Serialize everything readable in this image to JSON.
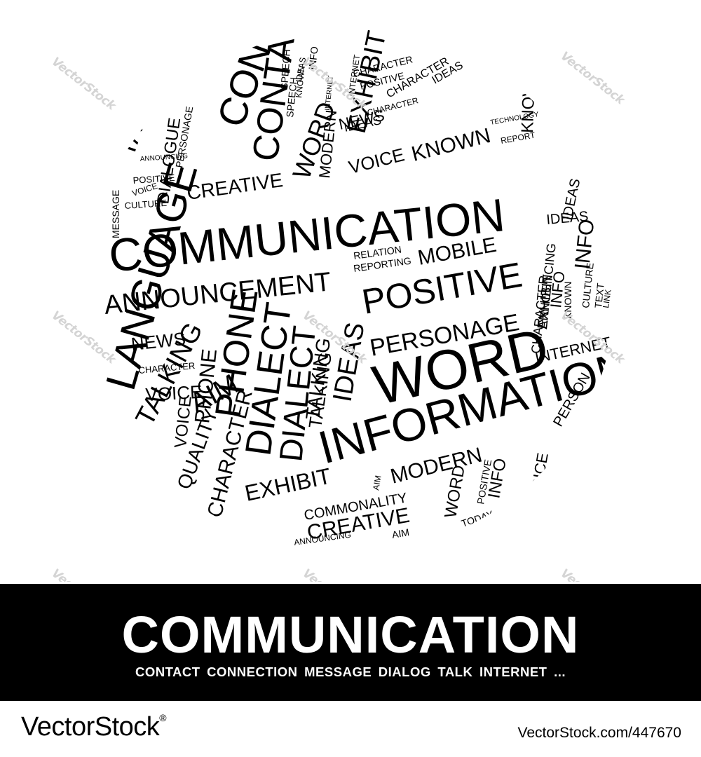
{
  "globe": {
    "words": [
      {
        "text": "COMMUNICATION"
      },
      {
        "text": "ANNOUNCEMENT"
      },
      {
        "text": "INFORMATION"
      },
      {
        "text": "WORD"
      },
      {
        "text": "POSITIVE"
      },
      {
        "text": "PERSONAGE"
      },
      {
        "text": "MOBILE"
      },
      {
        "text": "RELATION"
      },
      {
        "text": "REPORTING"
      },
      {
        "text": "CREATIVE"
      },
      {
        "text": "VOICE"
      },
      {
        "text": "KNOWN"
      },
      {
        "text": "TALKING"
      },
      {
        "text": "NEWS"
      },
      {
        "text": "WORD"
      },
      {
        "text": "CONTACT"
      },
      {
        "text": "MODERN"
      },
      {
        "text": "EXHIBIT"
      },
      {
        "text": "CHARACTER"
      },
      {
        "text": "POSITIVE"
      },
      {
        "text": "CHARACTER"
      },
      {
        "text": "INTERNET"
      },
      {
        "text": "SPEECH"
      },
      {
        "text": "IDEAS"
      },
      {
        "text": "TECHNOLOGY"
      },
      {
        "text": "REPORT"
      },
      {
        "text": "TALK"
      },
      {
        "text": "DIALOGUE"
      },
      {
        "text": "PERSONAGE"
      },
      {
        "text": "ANNOUNCING"
      },
      {
        "text": "POSITIVE"
      },
      {
        "text": "CULTURE"
      },
      {
        "text": "PHONE"
      },
      {
        "text": "DIALECT"
      },
      {
        "text": "DIALECT"
      },
      {
        "text": "TALKING"
      },
      {
        "text": "IDEAS"
      },
      {
        "text": "NEWS"
      },
      {
        "text": "CHARACTER"
      },
      {
        "text": "VOICE"
      },
      {
        "text": "MODERN"
      },
      {
        "text": "EXHIBIT"
      },
      {
        "text": "COMMONALITY"
      },
      {
        "text": "CREATIVE"
      },
      {
        "text": "AIM"
      },
      {
        "text": "ANNOUNCING"
      },
      {
        "text": "INTERNET"
      },
      {
        "text": "IDEAS"
      },
      {
        "text": "CHARACTER"
      },
      {
        "text": "ANNOUNCING"
      },
      {
        "text": "EXHIBIT"
      },
      {
        "text": "INFO"
      },
      {
        "text": "CULTURE"
      },
      {
        "text": "KNOWN"
      },
      {
        "text": "VOICE"
      },
      {
        "text": "INFO"
      },
      {
        "text": "WORD"
      },
      {
        "text": "POSITIVE"
      },
      {
        "text": "TODAY"
      },
      {
        "text": "PERSON"
      },
      {
        "text": "AIM"
      },
      {
        "text": "PHONE"
      },
      {
        "text": "VOICE"
      },
      {
        "text": "CONTACT"
      },
      {
        "text": "INFO"
      },
      {
        "text": "SPEECH"
      },
      {
        "text": "KNOWN"
      },
      {
        "text": "INTERNET"
      },
      {
        "text": "CHARACTER"
      },
      {
        "text": "IDEAS"
      },
      {
        "text": "TEXT"
      },
      {
        "text": "LINK"
      },
      {
        "text": "LANGUAGE"
      },
      {
        "text": "QUALITY"
      },
      {
        "text": "CHARACTER"
      },
      {
        "text": "IDEAS"
      },
      {
        "text": "TALKING"
      },
      {
        "text": "VOICE"
      },
      {
        "text": "AIM"
      },
      {
        "text": "INFO"
      },
      {
        "text": "IDEAS"
      },
      {
        "text": "KNOWN"
      },
      {
        "text": "MESSAGE"
      }
    ]
  },
  "watermark": {
    "text": "VectorStock"
  },
  "banner": {
    "title": "COMMUNICATION",
    "subtitle": "CONTACT  CONNECTION  MESSAGE  DIALOG  TALK  INTERNET ..."
  },
  "footer": {
    "brand": "VectorStock",
    "registered": "®",
    "image_id": "VectorStock.com/447670"
  },
  "colors": {
    "text": "#000000",
    "background": "#ffffff",
    "banner": "#000000",
    "banner_text": "#ffffff",
    "watermark": "#d4d4d4"
  }
}
